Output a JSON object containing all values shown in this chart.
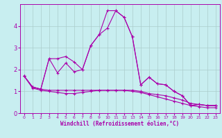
{
  "xlabel": "Windchill (Refroidissement éolien,°C)",
  "background_color": "#c8eef0",
  "grid_color": "#aacccc",
  "line_color": "#aa00aa",
  "x_values": [
    0,
    1,
    2,
    3,
    4,
    5,
    6,
    7,
    8,
    9,
    10,
    11,
    12,
    13,
    14,
    15,
    16,
    17,
    18,
    19,
    20,
    21,
    22,
    23
  ],
  "series1": [
    1.7,
    1.2,
    1.1,
    2.5,
    2.5,
    2.6,
    2.35,
    2.0,
    3.1,
    3.6,
    3.9,
    4.7,
    4.4,
    3.5,
    1.3,
    1.65,
    1.35,
    1.3,
    1.0,
    0.8,
    0.35,
    0.4,
    0.35,
    0.35
  ],
  "series2": [
    1.7,
    1.2,
    1.1,
    2.5,
    1.85,
    2.3,
    1.9,
    2.0,
    3.1,
    3.6,
    4.7,
    4.7,
    4.4,
    3.5,
    1.3,
    1.65,
    1.35,
    1.3,
    1.0,
    0.8,
    0.35,
    0.4,
    0.35,
    0.35
  ],
  "series3": [
    1.7,
    1.2,
    1.1,
    1.05,
    1.05,
    1.05,
    1.05,
    1.05,
    1.05,
    1.05,
    1.05,
    1.05,
    1.05,
    1.05,
    1.0,
    0.9,
    0.85,
    0.8,
    0.7,
    0.6,
    0.45,
    0.4,
    0.35,
    0.35
  ],
  "series4": [
    1.7,
    1.15,
    1.05,
    1.0,
    0.95,
    0.9,
    0.9,
    0.95,
    1.0,
    1.05,
    1.05,
    1.05,
    1.05,
    1.0,
    0.95,
    0.85,
    0.75,
    0.65,
    0.55,
    0.45,
    0.35,
    0.3,
    0.25,
    0.25
  ],
  "ylim": [
    0,
    5
  ],
  "xlim": [
    -0.5,
    23.5
  ],
  "yticks": [
    0,
    1,
    2,
    3,
    4
  ],
  "xticks": [
    0,
    1,
    2,
    3,
    4,
    5,
    6,
    7,
    8,
    9,
    10,
    11,
    12,
    13,
    14,
    15,
    16,
    17,
    18,
    19,
    20,
    21,
    22,
    23
  ]
}
